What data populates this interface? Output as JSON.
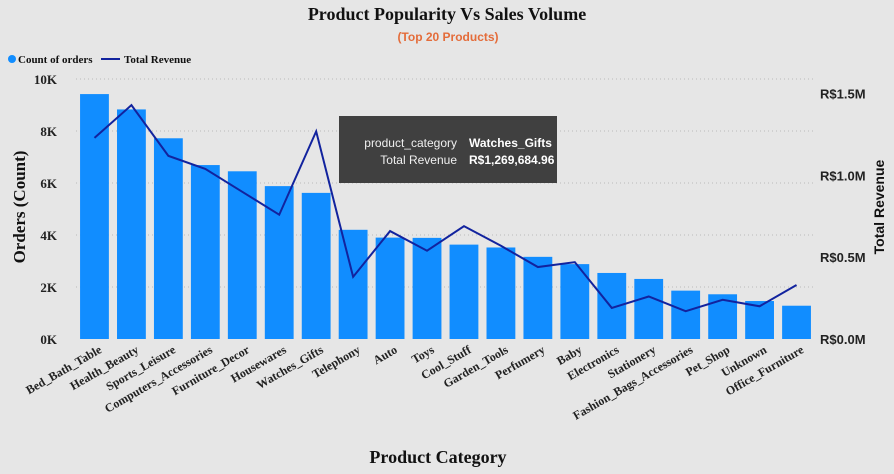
{
  "chart_data": {
    "type": "bar",
    "title": "Product Popularity Vs Sales Volume",
    "subtitle": "(Top 20 Products)",
    "xlabel": "Product Category",
    "ylabel": "Orders (Count)",
    "y2label": "Total Revenue",
    "categories": [
      "Bed_Bath_Table",
      "Health_Beauty",
      "Sports_Leisure",
      "Computers_Accessories",
      "Furniture_Decor",
      "Housewares",
      "Watches_Gifts",
      "Telephony",
      "Auto",
      "Toys",
      "Cool_Stuff",
      "Garden_Tools",
      "Perfumery",
      "Baby",
      "Electronics",
      "Stationery",
      "Fashion_Bags_Accessories",
      "Pet_Shop",
      "Unknown",
      "Office_Furniture"
    ],
    "series": [
      {
        "name": "Count of orders",
        "type": "bar",
        "axis": "left",
        "color": "#118dff",
        "values": [
          9420,
          8830,
          7720,
          6690,
          6450,
          5880,
          5620,
          4200,
          3900,
          3890,
          3630,
          3520,
          3160,
          2880,
          2540,
          2310,
          1860,
          1720,
          1460,
          1280
        ]
      },
      {
        "name": "Total Revenue",
        "type": "line",
        "axis": "right",
        "color": "#12239e",
        "values": [
          1230000,
          1430000,
          1120000,
          1040000,
          900000,
          760000,
          1269684.96,
          380000,
          660000,
          540000,
          690000,
          570000,
          440000,
          470000,
          190000,
          260000,
          170000,
          240000,
          200000,
          330000
        ]
      }
    ],
    "ylim": [
      0,
      10000
    ],
    "y_ticks": [
      "0K",
      "2K",
      "4K",
      "6K",
      "8K",
      "10K"
    ],
    "y2lim": [
      0,
      1590000
    ],
    "y2_ticks": [
      "R$0.0M",
      "R$0.5M",
      "R$1.0M",
      "R$1.5M"
    ],
    "legend_position": "top-left",
    "grid": true
  },
  "tooltip": {
    "key1": "product_category",
    "value1": "Watches_Gifts",
    "key2": "Total Revenue",
    "value2": "R$1,269,684.96"
  }
}
